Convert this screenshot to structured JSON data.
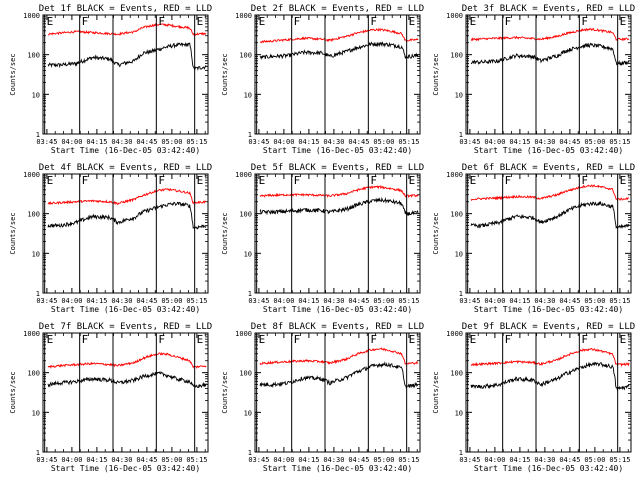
{
  "figure": {
    "x_tick_labels": [
      "03:45",
      "04:00",
      "04:15",
      "04:30",
      "04:45",
      "05:00",
      "05:15"
    ],
    "y_tick_labels": [
      "1",
      "10",
      "100",
      "1000"
    ],
    "ylabel": "Counts/sec",
    "xlabel": "Start Time (16-Dec-05 03:42:40)",
    "colors": {
      "events": "#000000",
      "lld": "#ff0000"
    },
    "boundary_flags": [
      "E",
      "F",
      "F",
      "E"
    ]
  },
  "chart_data": [
    {
      "type": "line",
      "title": "Det 1f BLACK = Events, RED = LLD",
      "xlabel": "Start Time (16-Dec-05 03:42:40)",
      "ylabel": "Counts/sec",
      "yscale": "log",
      "ylim": [
        1,
        1000
      ],
      "x_start_min": 0,
      "x_end_min": 99,
      "boundaries_min": [
        1,
        22,
        42,
        68,
        91
      ],
      "series": [
        {
          "name": "Events",
          "color": "#000000",
          "x_min": [
            3,
            10,
            20,
            30,
            40,
            45,
            55,
            60,
            65,
            70,
            75,
            80,
            88,
            90,
            92,
            98
          ],
          "values": [
            55,
            55,
            60,
            85,
            78,
            55,
            70,
            110,
            120,
            140,
            160,
            175,
            180,
            45,
            45,
            50
          ]
        },
        {
          "name": "LLD",
          "color": "#ff0000",
          "x_min": [
            3,
            10,
            20,
            30,
            40,
            45,
            55,
            60,
            65,
            70,
            75,
            80,
            88,
            90,
            92,
            98
          ],
          "values": [
            330,
            350,
            380,
            360,
            340,
            330,
            380,
            480,
            540,
            580,
            560,
            520,
            470,
            330,
            330,
            340
          ]
        }
      ]
    },
    {
      "type": "line",
      "title": "Det 2f BLACK = Events, RED = LLD",
      "xlabel": "Start Time (16-Dec-05 03:42:40)",
      "ylabel": "Counts/sec",
      "yscale": "log",
      "ylim": [
        1,
        1000
      ],
      "x_start_min": 0,
      "x_end_min": 99,
      "boundaries_min": [
        1,
        22,
        42,
        68,
        91
      ],
      "series": [
        {
          "name": "Events",
          "color": "#000000",
          "x_min": [
            3,
            10,
            20,
            30,
            40,
            45,
            55,
            60,
            65,
            70,
            75,
            80,
            88,
            90,
            92,
            98
          ],
          "values": [
            85,
            90,
            95,
            115,
            110,
            90,
            120,
            145,
            165,
            185,
            190,
            180,
            160,
            90,
            90,
            95
          ]
        },
        {
          "name": "LLD",
          "color": "#ff0000",
          "x_min": [
            3,
            10,
            20,
            30,
            40,
            45,
            55,
            60,
            65,
            70,
            75,
            80,
            88,
            90,
            92,
            98
          ],
          "values": [
            210,
            220,
            240,
            260,
            245,
            230,
            290,
            340,
            380,
            420,
            430,
            400,
            340,
            230,
            230,
            240
          ]
        }
      ]
    },
    {
      "type": "line",
      "title": "Det 3f BLACK = Events, RED = LLD",
      "xlabel": "Start Time (16-Dec-05 03:42:40)",
      "ylabel": "Counts/sec",
      "yscale": "log",
      "ylim": [
        1,
        1000
      ],
      "x_start_min": 0,
      "x_end_min": 99,
      "boundaries_min": [
        1,
        22,
        42,
        68,
        91
      ],
      "series": [
        {
          "name": "Events",
          "color": "#000000",
          "x_min": [
            3,
            10,
            20,
            30,
            40,
            45,
            55,
            60,
            65,
            70,
            75,
            80,
            88,
            90,
            92,
            98
          ],
          "values": [
            65,
            65,
            70,
            95,
            90,
            70,
            95,
            125,
            145,
            165,
            175,
            165,
            140,
            60,
            60,
            65
          ]
        },
        {
          "name": "LLD",
          "color": "#ff0000",
          "x_min": [
            3,
            10,
            20,
            30,
            40,
            45,
            55,
            60,
            65,
            70,
            75,
            80,
            88,
            90,
            92,
            98
          ],
          "values": [
            240,
            250,
            260,
            270,
            255,
            245,
            290,
            340,
            380,
            420,
            440,
            410,
            360,
            245,
            245,
            250
          ]
        }
      ]
    },
    {
      "type": "line",
      "title": "Det 4f BLACK = Events, RED = LLD",
      "xlabel": "Start Time (16-Dec-05 03:42:40)",
      "ylabel": "Counts/sec",
      "yscale": "log",
      "ylim": [
        1,
        1000
      ],
      "x_start_min": 0,
      "x_end_min": 99,
      "boundaries_min": [
        1,
        22,
        42,
        68,
        91
      ],
      "series": [
        {
          "name": "Events",
          "color": "#000000",
          "x_min": [
            3,
            10,
            20,
            30,
            40,
            45,
            55,
            60,
            65,
            70,
            75,
            80,
            88,
            90,
            92,
            98
          ],
          "values": [
            50,
            50,
            60,
            85,
            80,
            60,
            80,
            110,
            130,
            150,
            170,
            180,
            160,
            45,
            45,
            50
          ]
        },
        {
          "name": "LLD",
          "color": "#ff0000",
          "x_min": [
            3,
            10,
            20,
            30,
            40,
            45,
            55,
            60,
            65,
            70,
            75,
            80,
            88,
            90,
            92,
            98
          ],
          "values": [
            180,
            190,
            200,
            210,
            200,
            180,
            230,
            290,
            340,
            390,
            410,
            380,
            330,
            190,
            190,
            200
          ]
        }
      ]
    },
    {
      "type": "line",
      "title": "Det 5f BLACK = Events, RED = LLD",
      "xlabel": "Start Time (16-Dec-05 03:42:40)",
      "ylabel": "Counts/sec",
      "yscale": "log",
      "ylim": [
        1,
        1000
      ],
      "x_start_min": 0,
      "x_end_min": 99,
      "boundaries_min": [
        1,
        22,
        42,
        68,
        91
      ],
      "series": [
        {
          "name": "Events",
          "color": "#000000",
          "x_min": [
            3,
            10,
            20,
            30,
            40,
            45,
            55,
            60,
            65,
            70,
            75,
            80,
            88,
            90,
            92,
            98
          ],
          "values": [
            110,
            110,
            115,
            125,
            120,
            110,
            130,
            160,
            185,
            210,
            220,
            210,
            180,
            100,
            100,
            105
          ]
        },
        {
          "name": "LLD",
          "color": "#ff0000",
          "x_min": [
            3,
            10,
            20,
            30,
            40,
            45,
            55,
            60,
            65,
            70,
            75,
            80,
            88,
            90,
            92,
            98
          ],
          "values": [
            280,
            290,
            300,
            300,
            290,
            280,
            320,
            380,
            430,
            470,
            470,
            440,
            380,
            280,
            280,
            290
          ]
        }
      ]
    },
    {
      "type": "line",
      "title": "Det 6f BLACK = Events, RED = LLD",
      "xlabel": "Start Time (16-Dec-05 03:42:40)",
      "ylabel": "Counts/sec",
      "yscale": "log",
      "ylim": [
        1,
        1000
      ],
      "x_start_min": 0,
      "x_end_min": 99,
      "boundaries_min": [
        1,
        22,
        42,
        68,
        91
      ],
      "series": [
        {
          "name": "Events",
          "color": "#000000",
          "x_min": [
            3,
            10,
            20,
            30,
            40,
            45,
            55,
            60,
            65,
            70,
            75,
            80,
            88,
            90,
            92,
            98
          ],
          "values": [
            50,
            50,
            60,
            85,
            80,
            60,
            85,
            115,
            140,
            165,
            180,
            180,
            150,
            45,
            45,
            50
          ]
        },
        {
          "name": "LLD",
          "color": "#ff0000",
          "x_min": [
            3,
            10,
            20,
            30,
            40,
            45,
            55,
            60,
            65,
            70,
            75,
            80,
            88,
            90,
            92,
            98
          ],
          "values": [
            230,
            240,
            250,
            270,
            260,
            240,
            300,
            370,
            420,
            480,
            510,
            480,
            410,
            230,
            230,
            240
          ]
        }
      ]
    },
    {
      "type": "line",
      "title": "Det 7f BLACK = Events, RED = LLD",
      "xlabel": "Start Time (16-Dec-05 03:42:40)",
      "ylabel": "Counts/sec",
      "yscale": "log",
      "ylim": [
        1,
        1000
      ],
      "x_start_min": 0,
      "x_end_min": 99,
      "boundaries_min": [
        1,
        22,
        42,
        68,
        91
      ],
      "series": [
        {
          "name": "Events",
          "color": "#000000",
          "x_min": [
            3,
            10,
            20,
            30,
            40,
            45,
            55,
            60,
            65,
            70,
            75,
            80,
            88,
            90,
            92,
            98
          ],
          "values": [
            50,
            55,
            60,
            70,
            65,
            55,
            65,
            80,
            90,
            95,
            85,
            70,
            60,
            45,
            45,
            50
          ]
        },
        {
          "name": "LLD",
          "color": "#ff0000",
          "x_min": [
            3,
            10,
            20,
            30,
            40,
            45,
            55,
            60,
            65,
            70,
            75,
            80,
            88,
            90,
            92,
            98
          ],
          "values": [
            140,
            150,
            160,
            170,
            160,
            150,
            180,
            230,
            270,
            300,
            290,
            250,
            200,
            140,
            140,
            150
          ]
        }
      ]
    },
    {
      "type": "line",
      "title": "Det 8f BLACK = Events, RED = LLD",
      "xlabel": "Start Time (16-Dec-05 03:42:40)",
      "ylabel": "Counts/sec",
      "yscale": "log",
      "ylim": [
        1,
        1000
      ],
      "x_start_min": 0,
      "x_end_min": 99,
      "boundaries_min": [
        1,
        22,
        42,
        68,
        91
      ],
      "series": [
        {
          "name": "Events",
          "color": "#000000",
          "x_min": [
            3,
            10,
            20,
            30,
            40,
            45,
            55,
            60,
            65,
            70,
            75,
            80,
            88,
            90,
            92,
            98
          ],
          "values": [
            50,
            50,
            55,
            75,
            70,
            55,
            75,
            100,
            120,
            145,
            160,
            160,
            130,
            45,
            45,
            50
          ]
        },
        {
          "name": "LLD",
          "color": "#ff0000",
          "x_min": [
            3,
            10,
            20,
            30,
            40,
            45,
            55,
            60,
            65,
            70,
            75,
            80,
            88,
            90,
            92,
            98
          ],
          "values": [
            170,
            180,
            190,
            200,
            190,
            175,
            220,
            280,
            330,
            380,
            400,
            370,
            300,
            170,
            170,
            180
          ]
        }
      ]
    },
    {
      "type": "line",
      "title": "Det 9f BLACK = Events, RED = LLD",
      "xlabel": "Start Time (16-Dec-05 03:42:40)",
      "ylabel": "Counts/sec",
      "yscale": "log",
      "ylim": [
        1,
        1000
      ],
      "x_start_min": 0,
      "x_end_min": 99,
      "boundaries_min": [
        1,
        22,
        42,
        68,
        91
      ],
      "series": [
        {
          "name": "Events",
          "color": "#000000",
          "x_min": [
            3,
            10,
            20,
            30,
            40,
            45,
            55,
            60,
            65,
            70,
            75,
            80,
            88,
            90,
            92,
            98
          ],
          "values": [
            45,
            45,
            50,
            70,
            65,
            50,
            70,
            95,
            115,
            140,
            160,
            165,
            140,
            40,
            40,
            45
          ]
        },
        {
          "name": "LLD",
          "color": "#ff0000",
          "x_min": [
            3,
            10,
            20,
            30,
            40,
            45,
            55,
            60,
            65,
            70,
            75,
            80,
            88,
            90,
            92,
            98
          ],
          "values": [
            160,
            165,
            175,
            190,
            180,
            165,
            210,
            270,
            320,
            370,
            390,
            360,
            290,
            160,
            160,
            165
          ]
        }
      ]
    }
  ]
}
